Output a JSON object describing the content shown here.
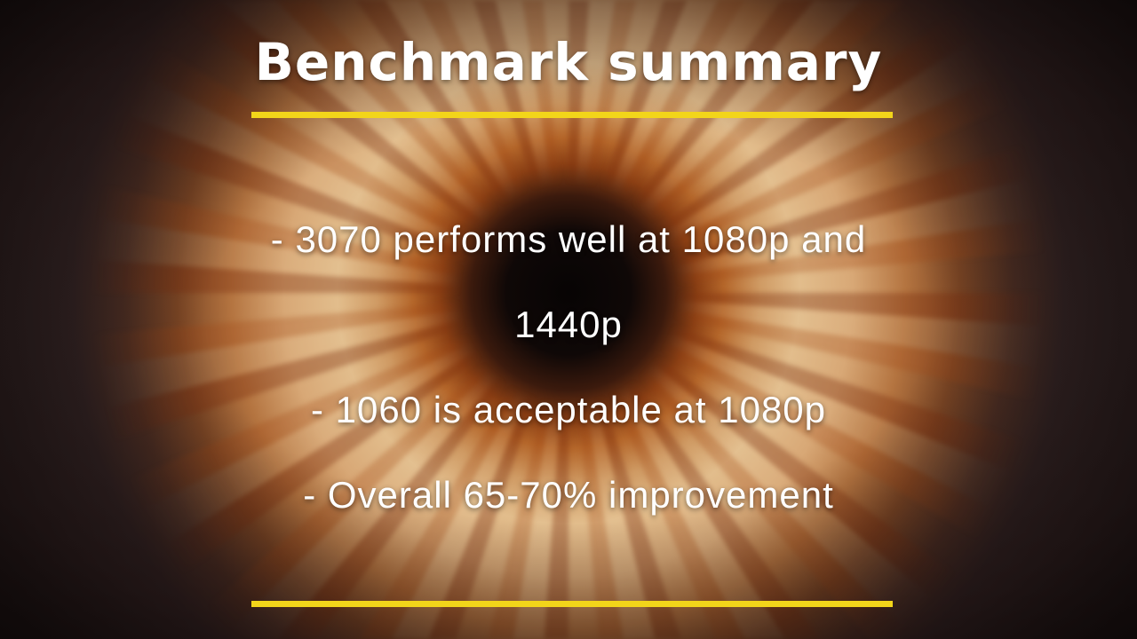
{
  "slide": {
    "title": "Benchmark summary",
    "accent_color": "#f2d51a",
    "text_color": "#ffffff",
    "bullets": [
      "- 3070 performs well at 1080p and 1440p",
      "- 1060 is acceptable at 1080p",
      "- Overall 65-70% improvement"
    ]
  }
}
